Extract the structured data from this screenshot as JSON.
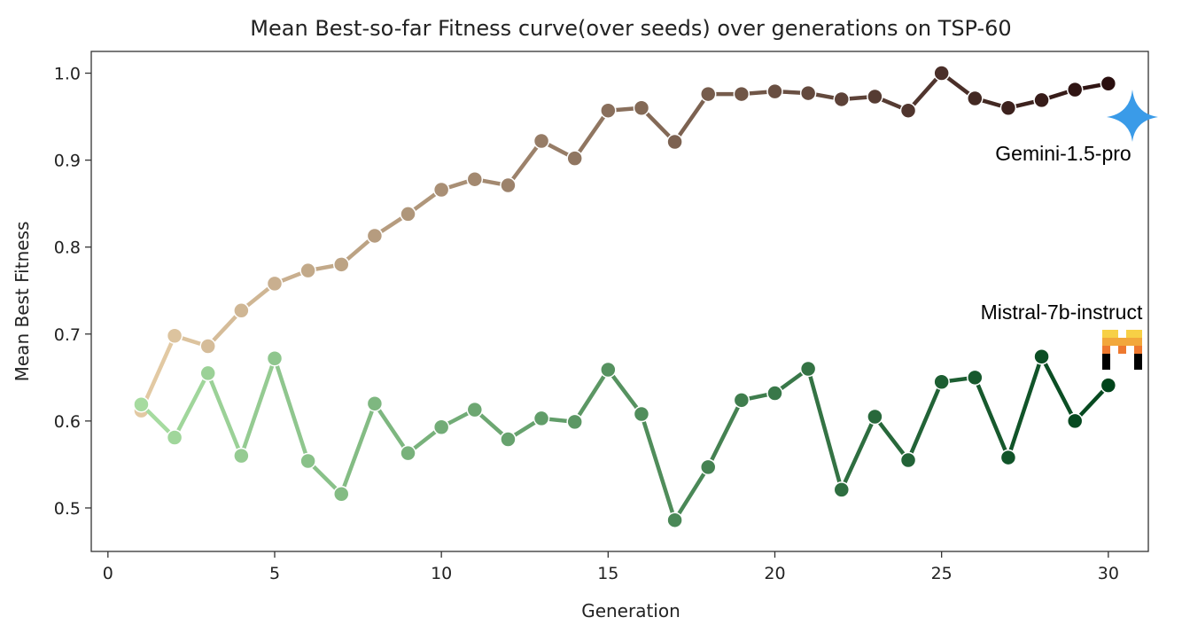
{
  "chart_data": {
    "type": "line",
    "title": "Mean Best-so-far Fitness curve(over seeds) over generations on TSP-60",
    "xlabel": "Generation",
    "ylabel": "Mean Best Fitness",
    "xlim": [
      -0.5,
      31.2
    ],
    "ylim": [
      0.45,
      1.025
    ],
    "xticks": [
      0,
      5,
      10,
      15,
      20,
      25,
      30
    ],
    "yticks": [
      0.5,
      0.6,
      0.7,
      0.8,
      0.9,
      1.0
    ],
    "grid": false,
    "x": [
      1,
      2,
      3,
      4,
      5,
      6,
      7,
      8,
      9,
      10,
      11,
      12,
      13,
      14,
      15,
      16,
      17,
      18,
      19,
      20,
      21,
      22,
      23,
      24,
      25,
      26,
      27,
      28,
      29,
      30
    ],
    "series": [
      {
        "name": "Gemini-1.5-pro",
        "color_start": "#e2c9a3",
        "color_end": "#2a0f0f",
        "values": [
          0.612,
          0.698,
          0.686,
          0.727,
          0.758,
          0.773,
          0.78,
          0.813,
          0.838,
          0.866,
          0.878,
          0.871,
          0.922,
          0.902,
          0.957,
          0.96,
          0.921,
          0.976,
          0.976,
          0.979,
          0.977,
          0.97,
          0.973,
          0.957,
          1.0,
          0.971,
          0.96,
          0.969,
          0.981,
          0.988
        ]
      },
      {
        "name": "Mistral-7b-instruct",
        "color_start": "#a6dba0",
        "color_end": "#00441b",
        "values": [
          0.619,
          0.581,
          0.655,
          0.56,
          0.672,
          0.554,
          0.516,
          0.62,
          0.563,
          0.593,
          0.613,
          0.579,
          0.603,
          0.599,
          0.659,
          0.608,
          0.486,
          0.547,
          0.624,
          0.632,
          0.66,
          0.521,
          0.605,
          0.555,
          0.645,
          0.65,
          0.558,
          0.674,
          0.6,
          0.641
        ]
      }
    ],
    "annotations": {
      "gemini_label": "Gemini-1.5-pro",
      "mistral_label": "Mistral-7b-instruct",
      "gemini_icon": "gemini-sparkle-icon",
      "mistral_icon": "mistral-logo-icon",
      "gemini_icon_color": "#3a9be8",
      "mistral_icon_colors": [
        "#f7d046",
        "#f2a73b",
        "#ee792f",
        "#eb5829",
        "#ea3326",
        "#000000"
      ]
    }
  }
}
